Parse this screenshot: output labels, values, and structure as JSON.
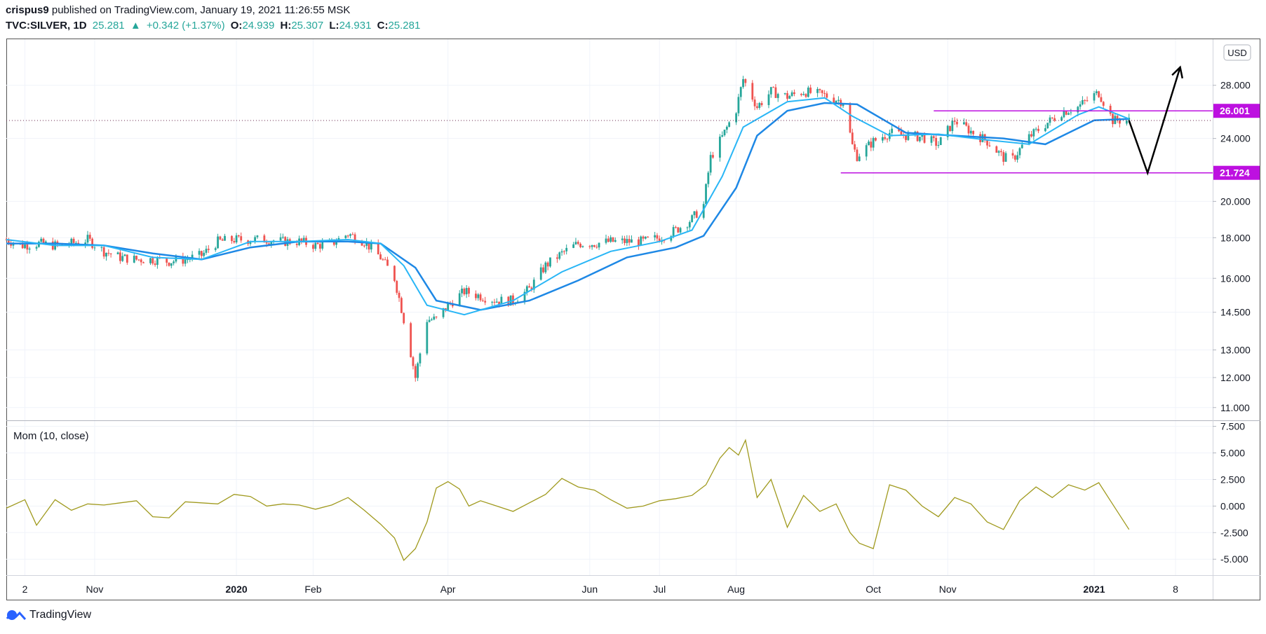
{
  "header": {
    "author": "crispus9",
    "published_text": "published on TradingView.com, January 19, 2021 11:26:55 MSK",
    "symbol": "TVC:SILVER, 1D",
    "last": "25.281",
    "change_arrow": "▲",
    "change": "+0.342 (+1.37%)",
    "o_label": "O:",
    "o_value": "24.939",
    "h_label": "H:",
    "h_value": "25.307",
    "l_label": "L:",
    "l_value": "24.931",
    "c_label": "C:",
    "c_value": "25.281"
  },
  "footer": {
    "brand": "TradingView"
  },
  "colors": {
    "up": "#26a69a",
    "down": "#ef5350",
    "ma_fast": "#29b6f6",
    "ma_slow": "#1e88e5",
    "momentum": "#a09a1e",
    "level": "#bd10e0",
    "arrow": "#000000"
  },
  "chart_data": [
    {
      "type": "candlestick",
      "title": "TVC:SILVER, 1D",
      "currency_label": "USD",
      "scale": "log",
      "ylim": [
        10.6,
        32.0
      ],
      "y_ticks": [
        "28.000",
        "24.000",
        "20.000",
        "18.000",
        "16.000",
        "14.500",
        "13.000",
        "12.000",
        "11.000"
      ],
      "x_ticks": [
        "2",
        "Nov",
        "2020",
        "Feb",
        "Apr",
        "Jun",
        "Jul",
        "Aug",
        "Oct",
        "Nov",
        "2021",
        "8"
      ],
      "x_tick_bold": [
        "2020",
        "2021"
      ],
      "x_tick_dates": [
        "2019-10-02",
        "2019-11-01",
        "2020-01-01",
        "2020-02-03",
        "2020-04-01",
        "2020-06-01",
        "2020-07-01",
        "2020-08-03",
        "2020-10-01",
        "2020-11-02",
        "2021-01-04",
        "2021-02-08"
      ],
      "x_range": [
        "2019-09-24",
        "2021-02-24"
      ],
      "close_path_dates": [
        "2019-09-24",
        "2019-10-01",
        "2019-10-08",
        "2019-10-15",
        "2019-10-22",
        "2019-10-29",
        "2019-11-05",
        "2019-11-12",
        "2019-11-19",
        "2019-11-26",
        "2019-12-03",
        "2019-12-10",
        "2019-12-17",
        "2019-12-24",
        "2019-12-31",
        "2020-01-07",
        "2020-01-14",
        "2020-01-21",
        "2020-01-28",
        "2020-02-04",
        "2020-02-11",
        "2020-02-18",
        "2020-02-25",
        "2020-03-03",
        "2020-03-09",
        "2020-03-13",
        "2020-03-18",
        "2020-03-23",
        "2020-03-27",
        "2020-04-01",
        "2020-04-08",
        "2020-04-15",
        "2020-04-22",
        "2020-04-29",
        "2020-05-06",
        "2020-05-13",
        "2020-05-20",
        "2020-05-27",
        "2020-06-03",
        "2020-06-10",
        "2020-06-17",
        "2020-06-24",
        "2020-07-01",
        "2020-07-08",
        "2020-07-15",
        "2020-07-20",
        "2020-07-23",
        "2020-07-28",
        "2020-08-03",
        "2020-08-06",
        "2020-08-12",
        "2020-08-18",
        "2020-08-25",
        "2020-09-01",
        "2020-09-10",
        "2020-09-18",
        "2020-09-22",
        "2020-09-24",
        "2020-10-01",
        "2020-10-08",
        "2020-10-15",
        "2020-10-22",
        "2020-10-29",
        "2020-11-05",
        "2020-11-12",
        "2020-11-19",
        "2020-11-26",
        "2020-11-30",
        "2020-12-07",
        "2020-12-14",
        "2020-12-21",
        "2020-12-28",
        "2021-01-04",
        "2021-01-06",
        "2021-01-12",
        "2021-01-19"
      ],
      "close_path_values": [
        17.9,
        17.6,
        17.7,
        17.6,
        17.7,
        17.9,
        17.3,
        17.0,
        16.9,
        16.9,
        16.8,
        16.9,
        17.1,
        17.8,
        17.9,
        17.9,
        17.9,
        17.8,
        17.8,
        17.6,
        17.7,
        18.2,
        17.8,
        17.0,
        16.0,
        14.2,
        12.0,
        14.2,
        14.2,
        14.8,
        15.4,
        15.2,
        15.0,
        15.0,
        15.5,
        16.6,
        17.2,
        17.7,
        17.7,
        17.8,
        17.8,
        17.8,
        18.0,
        18.4,
        19.0,
        19.8,
        22.7,
        24.1,
        26.1,
        28.5,
        26.3,
        27.5,
        27.1,
        27.5,
        27.2,
        26.7,
        23.5,
        22.8,
        23.8,
        24.4,
        24.2,
        24.1,
        23.6,
        25.3,
        24.5,
        23.8,
        22.7,
        22.6,
        24.1,
        25.0,
        25.9,
        26.3,
        27.2,
        27.4,
        25.3,
        25.28
      ],
      "ma_fast_dates": [
        "2019-09-24",
        "2019-10-15",
        "2019-11-05",
        "2019-11-26",
        "2019-12-17",
        "2020-01-07",
        "2020-01-28",
        "2020-02-18",
        "2020-03-03",
        "2020-03-13",
        "2020-03-23",
        "2020-04-08",
        "2020-04-29",
        "2020-05-20",
        "2020-06-10",
        "2020-07-01",
        "2020-07-15",
        "2020-07-28",
        "2020-08-06",
        "2020-08-25",
        "2020-09-10",
        "2020-09-22",
        "2020-10-08",
        "2020-10-29",
        "2020-11-19",
        "2020-12-07",
        "2020-12-28",
        "2021-01-06",
        "2021-01-19"
      ],
      "ma_fast_values": [
        17.9,
        17.6,
        17.6,
        17.0,
        16.9,
        17.8,
        17.8,
        17.9,
        17.7,
        16.6,
        14.8,
        14.4,
        15.0,
        16.3,
        17.3,
        17.8,
        18.4,
        21.5,
        24.8,
        26.7,
        27.0,
        25.6,
        24.2,
        24.3,
        23.9,
        23.6,
        25.7,
        26.3,
        25.4
      ],
      "ma_slow_dates": [
        "2019-09-24",
        "2019-10-15",
        "2019-11-05",
        "2019-11-26",
        "2019-12-17",
        "2020-01-07",
        "2020-01-28",
        "2020-02-18",
        "2020-03-03",
        "2020-03-18",
        "2020-03-27",
        "2020-04-15",
        "2020-05-06",
        "2020-05-27",
        "2020-06-17",
        "2020-07-08",
        "2020-07-20",
        "2020-08-03",
        "2020-08-12",
        "2020-08-25",
        "2020-09-10",
        "2020-09-24",
        "2020-10-15",
        "2020-11-05",
        "2020-11-26",
        "2020-12-14",
        "2021-01-04",
        "2021-01-19"
      ],
      "ma_slow_values": [
        17.7,
        17.7,
        17.6,
        17.2,
        16.9,
        17.5,
        17.8,
        17.8,
        17.7,
        16.5,
        15.0,
        14.6,
        15.0,
        15.9,
        17.0,
        17.5,
        18.1,
        20.8,
        24.2,
        26.0,
        26.6,
        26.5,
        24.4,
        24.2,
        24.0,
        23.6,
        25.3,
        25.4
      ],
      "price_line": {
        "value": 25.281
      },
      "resistance": {
        "label": "26.001",
        "value": 26.001,
        "x_start": "2020-10-27"
      },
      "support": {
        "label": "21.724",
        "value": 21.724,
        "x_start": "2020-09-17"
      },
      "projection_arrow_dates": [
        "2021-01-19",
        "2021-01-27",
        "2021-02-10"
      ],
      "projection_arrow_values": [
        25.28,
        21.72,
        29.5
      ]
    },
    {
      "type": "line",
      "title": "Mom (10, close)",
      "ylim": [
        -6.5,
        8.0
      ],
      "y_ticks": [
        "7.500",
        "5.000",
        "2.500",
        "0.000",
        "-2.500",
        "-5.000"
      ],
      "x_dates": [
        "2019-09-24",
        "2019-10-02",
        "2019-10-07",
        "2019-10-15",
        "2019-10-22",
        "2019-10-29",
        "2019-11-05",
        "2019-11-12",
        "2019-11-19",
        "2019-11-26",
        "2019-12-03",
        "2019-12-10",
        "2019-12-17",
        "2019-12-24",
        "2019-12-31",
        "2020-01-07",
        "2020-01-14",
        "2020-01-21",
        "2020-01-28",
        "2020-02-04",
        "2020-02-11",
        "2020-02-18",
        "2020-02-25",
        "2020-03-03",
        "2020-03-09",
        "2020-03-13",
        "2020-03-18",
        "2020-03-23",
        "2020-03-27",
        "2020-04-01",
        "2020-04-06",
        "2020-04-10",
        "2020-04-15",
        "2020-04-22",
        "2020-04-29",
        "2020-05-06",
        "2020-05-13",
        "2020-05-20",
        "2020-05-27",
        "2020-06-03",
        "2020-06-10",
        "2020-06-17",
        "2020-06-24",
        "2020-07-01",
        "2020-07-08",
        "2020-07-15",
        "2020-07-21",
        "2020-07-27",
        "2020-07-31",
        "2020-08-04",
        "2020-08-07",
        "2020-08-12",
        "2020-08-18",
        "2020-08-25",
        "2020-09-01",
        "2020-09-08",
        "2020-09-15",
        "2020-09-21",
        "2020-09-25",
        "2020-10-01",
        "2020-10-08",
        "2020-10-15",
        "2020-10-22",
        "2020-10-29",
        "2020-11-05",
        "2020-11-12",
        "2020-11-19",
        "2020-11-26",
        "2020-12-03",
        "2020-12-10",
        "2020-12-17",
        "2020-12-24",
        "2020-12-31",
        "2021-01-06",
        "2021-01-11",
        "2021-01-19"
      ],
      "values": [
        -0.2,
        0.6,
        -1.8,
        0.6,
        -0.4,
        0.2,
        0.1,
        0.3,
        0.5,
        -1.0,
        -1.1,
        0.4,
        0.3,
        0.2,
        1.1,
        0.9,
        0.0,
        0.2,
        0.1,
        -0.3,
        0.1,
        0.8,
        -0.4,
        -1.7,
        -3.0,
        -5.1,
        -4.0,
        -1.5,
        1.7,
        2.3,
        1.6,
        0.0,
        0.5,
        0.0,
        -0.5,
        0.3,
        1.1,
        2.6,
        1.8,
        1.5,
        0.6,
        -0.2,
        0.0,
        0.5,
        0.7,
        1.0,
        2.0,
        4.5,
        5.5,
        4.8,
        6.2,
        0.8,
        2.5,
        -2.0,
        1.0,
        -0.5,
        0.2,
        -2.5,
        -3.5,
        -4.0,
        2.0,
        1.5,
        0.0,
        -1.0,
        0.8,
        0.2,
        -1.5,
        -2.2,
        0.5,
        1.8,
        0.8,
        2.0,
        1.5,
        2.2,
        0.5,
        -2.2
      ]
    }
  ]
}
